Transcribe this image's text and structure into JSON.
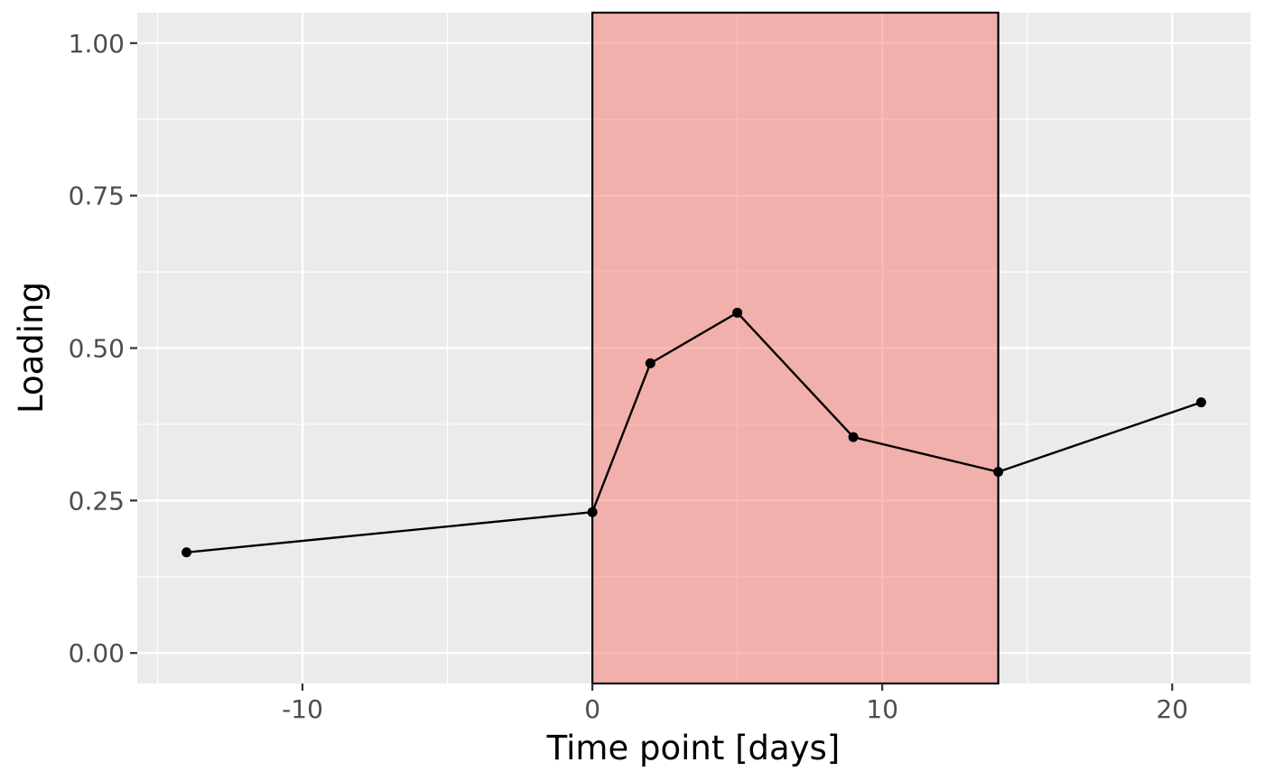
{
  "chart_data": {
    "type": "line",
    "xlabel": "Time point [days]",
    "ylabel": "Loading",
    "xlim": [
      -15.7,
      22.7
    ],
    "ylim": [
      -0.05,
      1.05
    ],
    "x_ticks": [
      -10,
      0,
      10,
      20
    ],
    "x_tick_labels": [
      "-10",
      "0",
      "10",
      "20"
    ],
    "y_ticks": [
      0,
      0.25,
      0.5,
      0.75,
      1.0
    ],
    "y_tick_labels": [
      "0.00",
      "0.25",
      "0.50",
      "0.75",
      "1.00"
    ],
    "x_minor_ticks": [
      -15,
      -5,
      5,
      15
    ],
    "y_minor_ticks": [
      0.125,
      0.375,
      0.625,
      0.875
    ],
    "grid": true,
    "highlight_region": {
      "x_start": 0,
      "x_end": 14,
      "fill": "#f8766d",
      "opacity": 0.5,
      "border": "#000000"
    },
    "series": [
      {
        "x": [
          -14,
          0,
          2,
          5,
          9,
          14,
          21
        ],
        "y": [
          0.165,
          0.231,
          0.475,
          0.558,
          0.354,
          0.297,
          0.411
        ],
        "color": "#000000"
      }
    ],
    "colors": {
      "panel_background": "#ebebeb",
      "grid_major": "#ffffff",
      "tick_text": "#4d4d4d",
      "tick_mark": "#333333"
    }
  }
}
